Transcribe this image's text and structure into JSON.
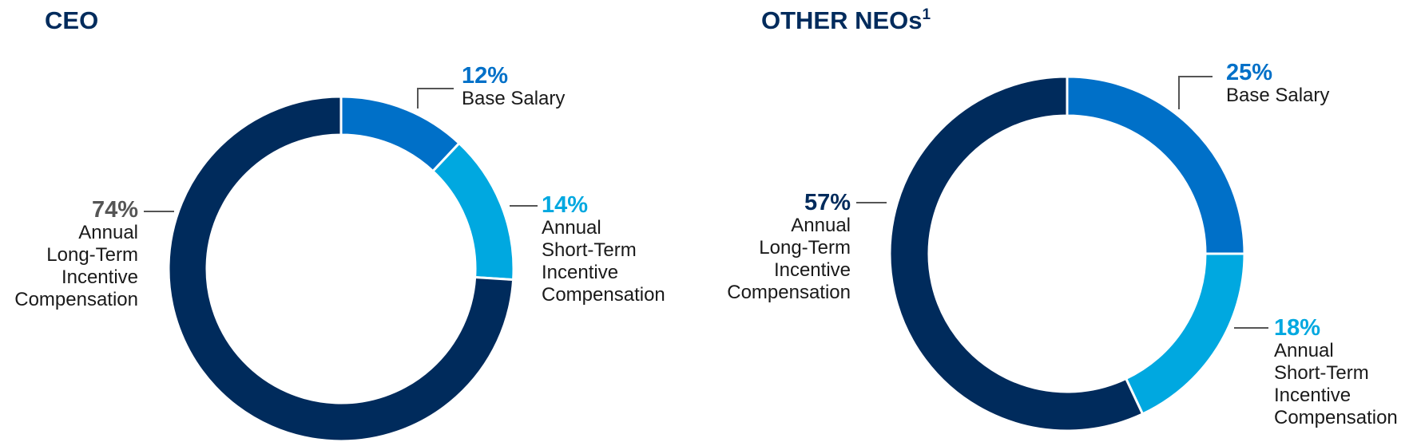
{
  "colors": {
    "navy": "#002B5C",
    "blue": "#0070C8",
    "light_blue": "#00A8E0",
    "gray_text": "#555555"
  },
  "chart_data": [
    {
      "type": "pie",
      "title": "CEO",
      "categories": [
        "Base Salary",
        "Annual Short-Term Incentive Compensation",
        "Annual Long-Term Incentive Compensation"
      ],
      "values": [
        12,
        14,
        74
      ],
      "slices": [
        {
          "pct": "12%",
          "label_lines": [
            "Base Salary"
          ],
          "color": "#0070C8",
          "pct_color": "#0070C8"
        },
        {
          "pct": "14%",
          "label_lines": [
            "Annual",
            "Short-Term",
            "Incentive",
            "Compensation"
          ],
          "color": "#00A8E0",
          "pct_color": "#00A8E0"
        },
        {
          "pct": "74%",
          "label_lines": [
            "Annual",
            "Long-Term",
            "Incentive",
            "Compensation"
          ],
          "color": "#002B5C",
          "pct_color": "#555555"
        }
      ]
    },
    {
      "type": "pie",
      "title": "OTHER NEOs",
      "title_sup": "1",
      "categories": [
        "Base Salary",
        "Annual Short-Term Incentive Compensation",
        "Annual Long-Term Incentive Compensation"
      ],
      "values": [
        25,
        18,
        57
      ],
      "slices": [
        {
          "pct": "25%",
          "label_lines": [
            "Base Salary"
          ],
          "color": "#0070C8",
          "pct_color": "#0070C8"
        },
        {
          "pct": "18%",
          "label_lines": [
            "Annual",
            "Short-Term",
            "Incentive",
            "Compensation"
          ],
          "color": "#00A8E0",
          "pct_color": "#00A8E0"
        },
        {
          "pct": "57%",
          "label_lines": [
            "Annual",
            "Long-Term",
            "Incentive",
            "Compensation"
          ],
          "color": "#002B5C",
          "pct_color": "#002B5C"
        }
      ]
    }
  ]
}
